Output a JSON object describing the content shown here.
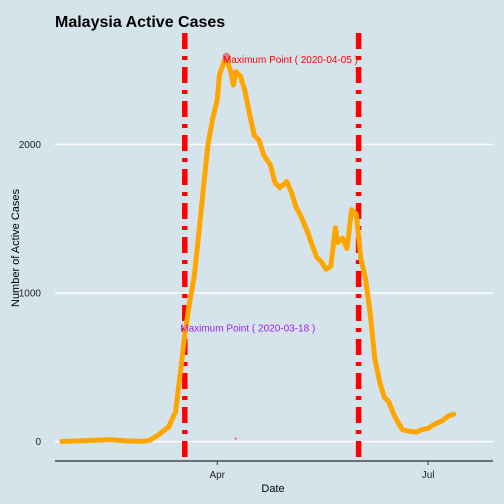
{
  "chart_data": {
    "type": "line",
    "title": "Malaysia Active Cases",
    "xlabel": "Date",
    "ylabel": "Number of Active Cases",
    "x_range": [
      "2020-01-22",
      "2020-07-29"
    ],
    "ylim": [
      -130,
      2750
    ],
    "x_ticks": [
      {
        "date": "2020-04-01",
        "label": "Apr"
      },
      {
        "date": "2020-07-01",
        "label": "Jul"
      }
    ],
    "y_ticks": [
      {
        "value": 0,
        "label": "0"
      },
      {
        "value": 1000,
        "label": "1000"
      },
      {
        "value": 2000,
        "label": "2000"
      }
    ],
    "grid": "horizontal",
    "background_color": "#d5e4eb",
    "series": [
      {
        "color": "#ffa500",
        "points": [
          [
            "2020-01-25",
            1
          ],
          [
            "2020-02-01",
            5
          ],
          [
            "2020-02-08",
            10
          ],
          [
            "2020-02-15",
            14
          ],
          [
            "2020-02-22",
            5
          ],
          [
            "2020-02-29",
            2
          ],
          [
            "2020-03-03",
            10
          ],
          [
            "2020-03-07",
            50
          ],
          [
            "2020-03-11",
            100
          ],
          [
            "2020-03-14",
            200
          ],
          [
            "2020-03-16",
            450
          ],
          [
            "2020-03-18",
            720
          ],
          [
            "2020-03-20",
            930
          ],
          [
            "2020-03-22",
            1100
          ],
          [
            "2020-03-24",
            1390
          ],
          [
            "2020-03-26",
            1700
          ],
          [
            "2020-03-28",
            2000
          ],
          [
            "2020-03-30",
            2170
          ],
          [
            "2020-04-01",
            2300
          ],
          [
            "2020-04-02",
            2470
          ],
          [
            "2020-04-04",
            2560
          ],
          [
            "2020-04-05",
            2590
          ],
          [
            "2020-04-06",
            2530
          ],
          [
            "2020-04-07",
            2480
          ],
          [
            "2020-04-08",
            2400
          ],
          [
            "2020-04-09",
            2490
          ],
          [
            "2020-04-11",
            2460
          ],
          [
            "2020-04-13",
            2360
          ],
          [
            "2020-04-15",
            2200
          ],
          [
            "2020-04-17",
            2060
          ],
          [
            "2020-04-19",
            2030
          ],
          [
            "2020-04-21",
            1930
          ],
          [
            "2020-04-24",
            1860
          ],
          [
            "2020-04-26",
            1740
          ],
          [
            "2020-04-28",
            1710
          ],
          [
            "2020-05-01",
            1750
          ],
          [
            "2020-05-03",
            1680
          ],
          [
            "2020-05-05",
            1580
          ],
          [
            "2020-05-07",
            1520
          ],
          [
            "2020-05-10",
            1410
          ],
          [
            "2020-05-12",
            1320
          ],
          [
            "2020-05-14",
            1240
          ],
          [
            "2020-05-16",
            1210
          ],
          [
            "2020-05-18",
            1160
          ],
          [
            "2020-05-20",
            1180
          ],
          [
            "2020-05-22",
            1440
          ],
          [
            "2020-05-23",
            1340
          ],
          [
            "2020-05-25",
            1370
          ],
          [
            "2020-05-27",
            1300
          ],
          [
            "2020-05-29",
            1560
          ],
          [
            "2020-05-31",
            1530
          ],
          [
            "2020-06-02",
            1230
          ],
          [
            "2020-06-04",
            1100
          ],
          [
            "2020-06-06",
            860
          ],
          [
            "2020-06-08",
            560
          ],
          [
            "2020-06-10",
            410
          ],
          [
            "2020-06-12",
            300
          ],
          [
            "2020-06-14",
            270
          ],
          [
            "2020-06-16",
            190
          ],
          [
            "2020-06-18",
            130
          ],
          [
            "2020-06-20",
            80
          ],
          [
            "2020-06-23",
            70
          ],
          [
            "2020-06-26",
            65
          ],
          [
            "2020-06-28",
            80
          ],
          [
            "2020-07-01",
            90
          ],
          [
            "2020-07-04",
            120
          ],
          [
            "2020-07-07",
            140
          ],
          [
            "2020-07-10",
            175
          ],
          [
            "2020-07-12",
            185
          ]
        ]
      }
    ],
    "vertical_lines": [
      {
        "date": "2020-03-18",
        "color": "#ff0000",
        "style": "dot-dash"
      },
      {
        "date": "2020-06-01",
        "color": "#ff0000",
        "style": "dot-dash"
      }
    ],
    "annotations": [
      {
        "text": "Maximum Point ( 2020-04-05 )",
        "date": "2020-04-05",
        "value": 2590,
        "color": "#ff0000"
      },
      {
        "text": "Maximum Point ( 2020-03-18 )",
        "date": "2020-03-18",
        "value": 720,
        "color": "#a020f0"
      }
    ],
    "markers": [
      {
        "date": "2020-04-05",
        "value": 2590,
        "color": "#e8747c"
      },
      {
        "date": "2020-04-09",
        "value": 20,
        "color": "#e8747c"
      }
    ]
  }
}
